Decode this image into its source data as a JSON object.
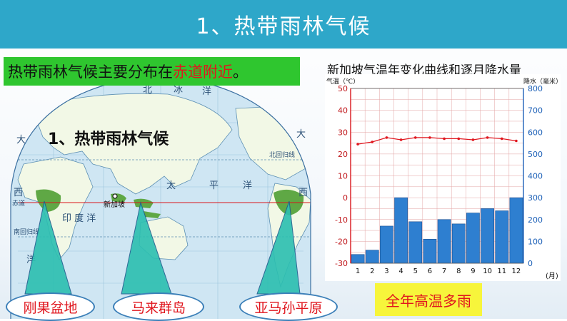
{
  "page_title": "1、热带雨林气候",
  "banner": {
    "part1": "热带雨林气候主要分布在",
    "highlight": "赤道附近",
    "part3": "。"
  },
  "map": {
    "heading": "1、热带雨林气候",
    "labels": {
      "north": "北",
      "ice": "冰",
      "ocean": "洋",
      "large": "大",
      "west": "西",
      "tai": "太",
      "ping": "平",
      "yang": "洋",
      "indian": "印 度 洋",
      "equator": "赤道",
      "north_tropic": "北回归线",
      "south_tropic": "南回归线",
      "singapore": "新加坡"
    },
    "colors": {
      "land": "#f2f8e6",
      "sea": "#cfe6f3",
      "rainforest": "#5fa845"
    }
  },
  "regions": [
    "刚果盆地",
    "马来群岛",
    "亚马孙平原"
  ],
  "conclusion": "全年高温多雨",
  "chart_data": {
    "type": "bar+line",
    "title": "新加坡气温年变化曲线和逐月降水量",
    "y_left_label": "气温（℃）",
    "y_right_label": "降水（毫米）",
    "x_unit": "(月)",
    "categories": [
      "1",
      "2",
      "3",
      "4",
      "5",
      "6",
      "7",
      "8",
      "9",
      "10",
      "11",
      "12"
    ],
    "y_left_ticks": [
      "50",
      "40",
      "30",
      "20",
      "10",
      "0",
      "-10",
      "-20",
      "-30"
    ],
    "y_right_ticks": [
      "800",
      "700",
      "600",
      "500",
      "400",
      "300",
      "200",
      "100",
      "0"
    ],
    "y_left_range": [
      -30,
      50
    ],
    "y_right_range": [
      0,
      800
    ],
    "temperature": [
      24.5,
      25.5,
      27.5,
      26.5,
      27.5,
      27.5,
      27,
      27,
      26.5,
      27.5,
      27,
      26
    ],
    "precipitation": [
      40,
      60,
      170,
      300,
      190,
      110,
      200,
      180,
      230,
      250,
      240,
      300
    ],
    "colors": {
      "bar": "#2e7fd0",
      "line": "#e0161e",
      "axis_left": "#d9141b",
      "axis_right": "#1f62b8"
    }
  }
}
